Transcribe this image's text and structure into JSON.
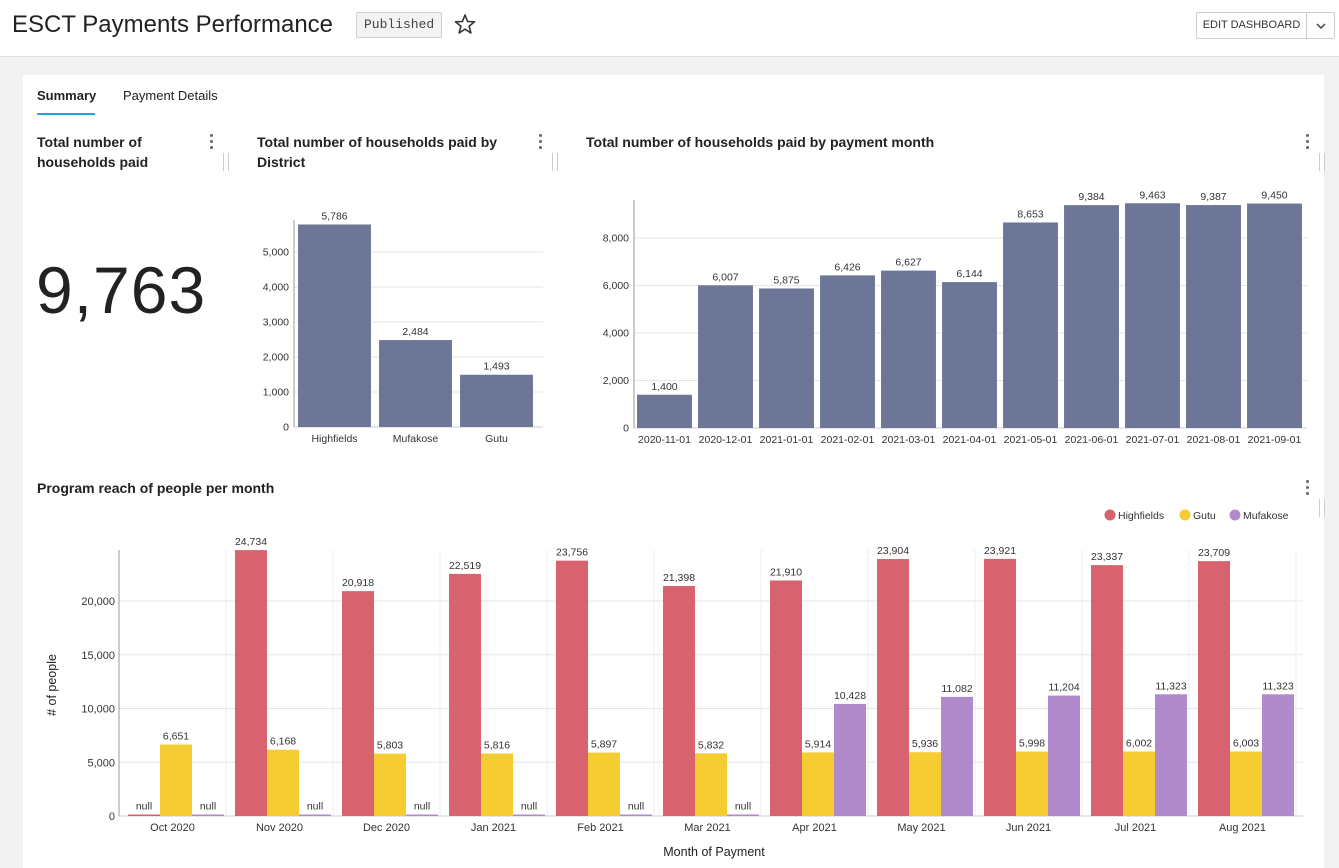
{
  "header": {
    "title": "ESCT Payments Performance",
    "status_badge": "Published",
    "edit_button": "EDIT DASHBOARD"
  },
  "tabs": [
    {
      "label": "Summary",
      "active": true
    },
    {
      "label": "Payment Details",
      "active": false
    }
  ],
  "kpi": {
    "title_line1": "Total number of",
    "title_line2": "households paid",
    "value": "9,763"
  },
  "colors": {
    "bar_primary": "#6d7697",
    "highfields": "#d9626f",
    "gutu": "#f5cd33",
    "mufakose": "#b08acb",
    "accent": "#20a7c9"
  },
  "charts": {
    "district": {
      "title_line1": "Total number of households paid by",
      "title_line2": "District"
    },
    "month": {
      "title": "Total number of households paid by payment month"
    },
    "reach": {
      "title": "Program reach of people per month"
    }
  },
  "chart_data": [
    {
      "type": "bar",
      "title": "Total number of households paid by District",
      "categories": [
        "Highfields",
        "Mufakose",
        "Gutu"
      ],
      "values": [
        5786,
        2484,
        1493
      ],
      "value_labels": [
        "5,786",
        "2,484",
        "1,493"
      ],
      "yticks": [
        "0",
        "1,000",
        "2,000",
        "3,000",
        "4,000",
        "5,000"
      ],
      "ylim": [
        0,
        5786
      ],
      "grid": true
    },
    {
      "type": "bar",
      "title": "Total number of households paid by payment month",
      "categories": [
        "2020-11-01",
        "2020-12-01",
        "2021-01-01",
        "2021-02-01",
        "2021-03-01",
        "2021-04-01",
        "2021-05-01",
        "2021-06-01",
        "2021-07-01",
        "2021-08-01",
        "2021-09-01"
      ],
      "values": [
        1400,
        6007,
        5875,
        6426,
        6627,
        6144,
        8653,
        9384,
        9463,
        9387,
        9450
      ],
      "value_labels": [
        "1,400",
        "6,007",
        "5,875",
        "6,426",
        "6,627",
        "6,144",
        "8,653",
        "9,384",
        "9,463",
        "9,387",
        "9,450"
      ],
      "yticks": [
        "0",
        "2,000",
        "4,000",
        "6,000",
        "8,000"
      ],
      "ylim": [
        0,
        9463
      ],
      "grid": true
    },
    {
      "type": "bar",
      "title": "Program reach of people per month",
      "xlabel": "Month of Payment",
      "ylabel": "# of people",
      "categories": [
        "Oct 2020",
        "Nov 2020",
        "Dec 2020",
        "Jan 2021",
        "Feb 2021",
        "Mar 2021",
        "Apr 2021",
        "May 2021",
        "Jun 2021",
        "Jul 2021",
        "Aug 2021"
      ],
      "legend_position": "top-right",
      "series": [
        {
          "name": "Highfields",
          "values": [
            0,
            24734,
            20918,
            22519,
            23756,
            21398,
            21910,
            23904,
            23921,
            23337,
            23709
          ],
          "value_labels": [
            "null",
            "24,734",
            "20,918",
            "22,519",
            "23,756",
            "21,398",
            "21,910",
            "23,904",
            "23,921",
            "23,337",
            "23,709"
          ]
        },
        {
          "name": "Gutu",
          "values": [
            6651,
            6168,
            5803,
            5816,
            5897,
            5832,
            5914,
            5936,
            5998,
            6002,
            6003
          ],
          "value_labels": [
            "6,651",
            "6,168",
            "5,803",
            "5,816",
            "5,897",
            "5,832",
            "5,914",
            "5,936",
            "5,998",
            "6,002",
            "6,003"
          ]
        },
        {
          "name": "Mufakose",
          "values": [
            0,
            0,
            0,
            0,
            0,
            0,
            10428,
            11082,
            11204,
            11323,
            11323
          ],
          "value_labels": [
            "null",
            "null",
            "null",
            "null",
            "null",
            "null",
            "10,428",
            "11,082",
            "11,204",
            "11,323",
            "11,323"
          ]
        }
      ],
      "yticks": [
        "0",
        "5,000",
        "10,000",
        "15,000",
        "20,000"
      ],
      "ylim": [
        0,
        24734
      ],
      "grid": true
    }
  ]
}
